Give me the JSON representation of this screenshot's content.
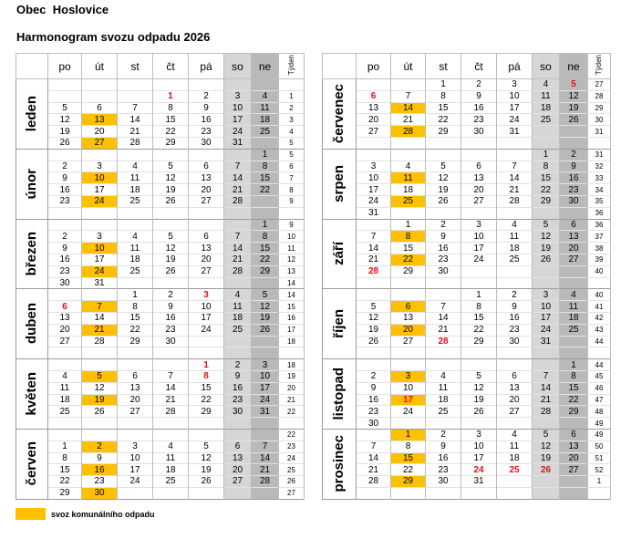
{
  "header": {
    "municipality": "Obec  Hoslovice",
    "title": "Harmonogram svozu odpadu 2026"
  },
  "columns": [
    "po",
    "út",
    "st",
    "čt",
    "pá",
    "so",
    "ne",
    "Týden"
  ],
  "colors": {
    "collection": "#ffc000",
    "holiday": "#e0101a",
    "saturday": "#d6d6d6",
    "sunday": "#b9b9b9"
  },
  "legend": {
    "label": "svoz komunálního odpadu"
  },
  "left": [
    {
      "name": "leden",
      "collection": [
        "13",
        "27"
      ],
      "holidays": [
        "1"
      ],
      "rows": [
        [
          "",
          "",
          "",
          "",
          "",
          "",
          "",
          ""
        ],
        [
          "",
          "",
          "",
          "1",
          "2",
          "3",
          "4",
          "1"
        ],
        [
          "5",
          "6",
          "7",
          "8",
          "9",
          "10",
          "11",
          "2"
        ],
        [
          "12",
          "13",
          "14",
          "15",
          "16",
          "17",
          "18",
          "3"
        ],
        [
          "19",
          "20",
          "21",
          "22",
          "23",
          "24",
          "25",
          "4"
        ],
        [
          "26",
          "27",
          "28",
          "29",
          "30",
          "31",
          "",
          "5"
        ]
      ]
    },
    {
      "name": "únor",
      "collection": [
        "10",
        "24"
      ],
      "holidays": [],
      "rows": [
        [
          "",
          "",
          "",
          "",
          "",
          "",
          "1",
          "5"
        ],
        [
          "2",
          "3",
          "4",
          "5",
          "6",
          "7",
          "8",
          "6"
        ],
        [
          "9",
          "10",
          "11",
          "12",
          "13",
          "14",
          "15",
          "7"
        ],
        [
          "16",
          "17",
          "18",
          "19",
          "20",
          "21",
          "22",
          "8"
        ],
        [
          "23",
          "24",
          "25",
          "26",
          "27",
          "28",
          "",
          "9"
        ],
        [
          "",
          "",
          "",
          "",
          "",
          "",
          "",
          ""
        ]
      ]
    },
    {
      "name": "březen",
      "collection": [
        "10",
        "24"
      ],
      "holidays": [],
      "rows": [
        [
          "",
          "",
          "",
          "",
          "",
          "",
          "1",
          "9"
        ],
        [
          "2",
          "3",
          "4",
          "5",
          "6",
          "7",
          "8",
          "10"
        ],
        [
          "9",
          "10",
          "11",
          "12",
          "13",
          "14",
          "15",
          "11"
        ],
        [
          "16",
          "17",
          "18",
          "19",
          "20",
          "21",
          "22",
          "12"
        ],
        [
          "23",
          "24",
          "25",
          "26",
          "27",
          "28",
          "29",
          "13"
        ],
        [
          "30",
          "31",
          "",
          "",
          "",
          "",
          "",
          "14"
        ]
      ]
    },
    {
      "name": "duben",
      "collection": [
        "7",
        "21"
      ],
      "holidays": [
        "3",
        "6"
      ],
      "rows": [
        [
          "",
          "",
          "1",
          "2",
          "3",
          "4",
          "5",
          "14"
        ],
        [
          "6",
          "7",
          "8",
          "9",
          "10",
          "11",
          "12",
          "15"
        ],
        [
          "13",
          "14",
          "15",
          "16",
          "17",
          "18",
          "19",
          "16"
        ],
        [
          "20",
          "21",
          "22",
          "23",
          "24",
          "25",
          "26",
          "17"
        ],
        [
          "27",
          "28",
          "29",
          "30",
          "",
          "",
          "",
          "18"
        ],
        [
          "",
          "",
          "",
          "",
          "",
          "",
          "",
          ""
        ]
      ]
    },
    {
      "name": "květen",
      "collection": [
        "5",
        "19"
      ],
      "holidays": [
        "1",
        "8"
      ],
      "rows": [
        [
          "",
          "",
          "",
          "",
          "1",
          "2",
          "3",
          "18"
        ],
        [
          "4",
          "5",
          "6",
          "7",
          "8",
          "9",
          "10",
          "19"
        ],
        [
          "11",
          "12",
          "13",
          "14",
          "15",
          "16",
          "17",
          "20"
        ],
        [
          "18",
          "19",
          "20",
          "21",
          "22",
          "23",
          "24",
          "21"
        ],
        [
          "25",
          "26",
          "27",
          "28",
          "29",
          "30",
          "31",
          "22"
        ],
        [
          "",
          "",
          "",
          "",
          "",
          "",
          "",
          ""
        ]
      ]
    },
    {
      "name": "červen",
      "collection": [
        "2",
        "16",
        "30"
      ],
      "holidays": [],
      "rows": [
        [
          "",
          "",
          "",
          "",
          "",
          "",
          "",
          "22"
        ],
        [
          "1",
          "2",
          "3",
          "4",
          "5",
          "6",
          "7",
          "23"
        ],
        [
          "8",
          "9",
          "10",
          "11",
          "12",
          "13",
          "14",
          "24"
        ],
        [
          "15",
          "16",
          "17",
          "18",
          "19",
          "20",
          "21",
          "25"
        ],
        [
          "22",
          "23",
          "24",
          "25",
          "26",
          "27",
          "28",
          "26"
        ],
        [
          "29",
          "30",
          "",
          "",
          "",
          "",
          "",
          "27"
        ]
      ]
    }
  ],
  "right": [
    {
      "name": "červenec",
      "collection": [
        "14",
        "28"
      ],
      "holidays": [
        "5",
        "6"
      ],
      "rows": [
        [
          "",
          "",
          "1",
          "2",
          "3",
          "4",
          "5",
          "27"
        ],
        [
          "6",
          "7",
          "8",
          "9",
          "10",
          "11",
          "12",
          "28"
        ],
        [
          "13",
          "14",
          "15",
          "16",
          "17",
          "18",
          "19",
          "29"
        ],
        [
          "20",
          "21",
          "22",
          "23",
          "24",
          "25",
          "26",
          "30"
        ],
        [
          "27",
          "28",
          "29",
          "30",
          "31",
          "",
          "",
          "31"
        ],
        [
          "",
          "",
          "",
          "",
          "",
          "",
          "",
          ""
        ]
      ]
    },
    {
      "name": "srpen",
      "collection": [
        "11",
        "25"
      ],
      "holidays": [],
      "rows": [
        [
          "",
          "",
          "",
          "",
          "",
          "1",
          "2",
          "31"
        ],
        [
          "3",
          "4",
          "5",
          "6",
          "7",
          "8",
          "9",
          "32"
        ],
        [
          "10",
          "11",
          "12",
          "13",
          "14",
          "15",
          "16",
          "33"
        ],
        [
          "17",
          "18",
          "19",
          "20",
          "21",
          "22",
          "23",
          "34"
        ],
        [
          "24",
          "25",
          "26",
          "27",
          "28",
          "29",
          "30",
          "35"
        ],
        [
          "31",
          "",
          "",
          "",
          "",
          "",
          "",
          "36"
        ]
      ]
    },
    {
      "name": "září",
      "collection": [
        "8",
        "22"
      ],
      "holidays": [
        "28"
      ],
      "rows": [
        [
          "",
          "1",
          "2",
          "3",
          "4",
          "5",
          "6",
          "36"
        ],
        [
          "7",
          "8",
          "9",
          "10",
          "11",
          "12",
          "13",
          "37"
        ],
        [
          "14",
          "15",
          "16",
          "17",
          "18",
          "19",
          "20",
          "38"
        ],
        [
          "21",
          "22",
          "23",
          "24",
          "25",
          "26",
          "27",
          "39"
        ],
        [
          "28",
          "29",
          "30",
          "",
          "",
          "",
          "",
          "40"
        ],
        [
          "",
          "",
          "",
          "",
          "",
          "",
          "",
          ""
        ]
      ]
    },
    {
      "name": "říjen",
      "collection": [
        "6",
        "20"
      ],
      "holidays": [
        "28"
      ],
      "rows": [
        [
          "",
          "",
          "",
          "1",
          "2",
          "3",
          "4",
          "40"
        ],
        [
          "5",
          "6",
          "7",
          "8",
          "9",
          "10",
          "11",
          "41"
        ],
        [
          "12",
          "13",
          "14",
          "15",
          "16",
          "17",
          "18",
          "42"
        ],
        [
          "19",
          "20",
          "21",
          "22",
          "23",
          "24",
          "25",
          "43"
        ],
        [
          "26",
          "27",
          "28",
          "29",
          "30",
          "31",
          "",
          "44"
        ],
        [
          "",
          "",
          "",
          "",
          "",
          "",
          "",
          ""
        ]
      ]
    },
    {
      "name": "listopad",
      "collection": [
        "3",
        "17"
      ],
      "holidays": [
        "17"
      ],
      "rows": [
        [
          "",
          "",
          "",
          "",
          "",
          "",
          "1",
          "44"
        ],
        [
          "2",
          "3",
          "4",
          "5",
          "6",
          "7",
          "8",
          "45"
        ],
        [
          "9",
          "10",
          "11",
          "12",
          "13",
          "14",
          "15",
          "46"
        ],
        [
          "16",
          "17",
          "18",
          "19",
          "20",
          "21",
          "22",
          "47"
        ],
        [
          "23",
          "24",
          "25",
          "26",
          "27",
          "28",
          "29",
          "48"
        ],
        [
          "30",
          "",
          "",
          "",
          "",
          "",
          "",
          "49"
        ]
      ]
    },
    {
      "name": "prosinec",
      "collection": [
        "1",
        "15",
        "29"
      ],
      "holidays": [
        "24",
        "25",
        "26"
      ],
      "rows": [
        [
          "",
          "1",
          "2",
          "3",
          "4",
          "5",
          "6",
          "49"
        ],
        [
          "7",
          "8",
          "9",
          "10",
          "11",
          "12",
          "13",
          "50"
        ],
        [
          "14",
          "15",
          "16",
          "17",
          "18",
          "19",
          "20",
          "51"
        ],
        [
          "21",
          "22",
          "23",
          "24",
          "25",
          "26",
          "27",
          "52"
        ],
        [
          "28",
          "29",
          "30",
          "31",
          "",
          "",
          "",
          "1"
        ],
        [
          "",
          "",
          "",
          "",
          "",
          "",
          "",
          ""
        ]
      ]
    }
  ]
}
